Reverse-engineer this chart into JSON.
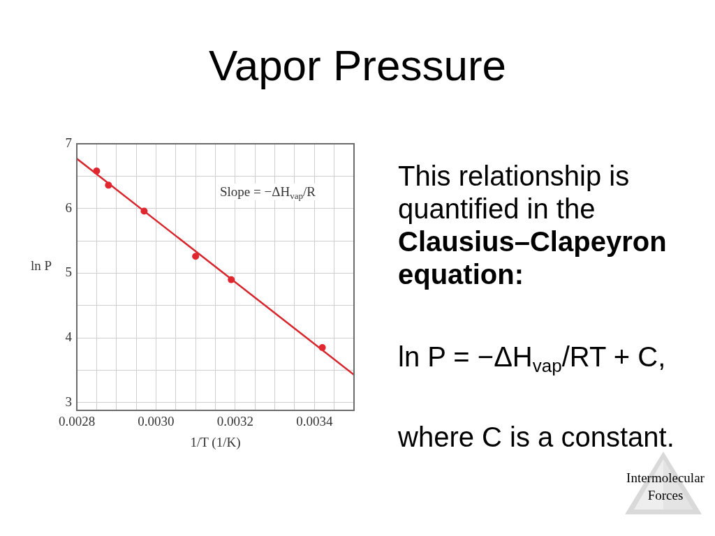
{
  "chart_data": {
    "type": "scatter",
    "title": "Vapor Pressure",
    "xlabel": "1/T (1/K)",
    "ylabel": "ln P",
    "annotations": [
      "Slope = −ΔH$_{vap}$/R",
      "This relationship is quantified in the",
      "Clausius–Clapeyron equation:",
      "ln P = −ΔH$_{vap}$/RT + C,",
      "where C is a constant.",
      "Intermolecular Forces"
    ],
    "series": [
      {
        "color": "#e0262e",
        "x": [
          0.00285,
          0.00288,
          0.00297,
          0.0031,
          0.00319,
          0.00342
        ],
        "values": [
          6.58,
          6.36,
          5.96,
          5.26,
          4.9,
          3.85
        ]
      },
      {
        "type": "line",
        "color": "#d9262c",
        "x": [
          0.0028,
          0.0035
        ],
        "values": [
          6.77,
          3.43
        ],
        "marker": "none"
      }
    ],
    "xlim": [
      0.0028,
      0.0035
    ],
    "xticks": [
      0.0028,
      {
        "value": 0.00285,
        "label": null
      },
      {
        "value": 0.0029,
        "label": null
      },
      {
        "value": 0.00295,
        "label": null
      },
      {
        "value": 0.003,
        "label": "0.0030"
      },
      {
        "value": 0.00305,
        "label": null
      },
      {
        "value": 0.0031,
        "label": null
      },
      {
        "value": 0.00315,
        "label": null
      },
      0.0032,
      {
        "value": 0.00325,
        "label": null
      },
      {
        "value": 0.0033,
        "label": null
      },
      {
        "value": 0.00335,
        "label": null
      },
      0.0034,
      {
        "value": 0.00345,
        "label": null
      }
    ],
    "ylim": [
      2.88,
      7
    ],
    "yticks": [
      3,
      {
        "value": 3.5,
        "label": null
      },
      4,
      {
        "value": 4.5,
        "label": null
      },
      5,
      {
        "value": 5.5,
        "label": null
      },
      6,
      {
        "value": 6.5,
        "label": null
      },
      7
    ],
    "grid": true,
    "marker": "circle"
  }
}
